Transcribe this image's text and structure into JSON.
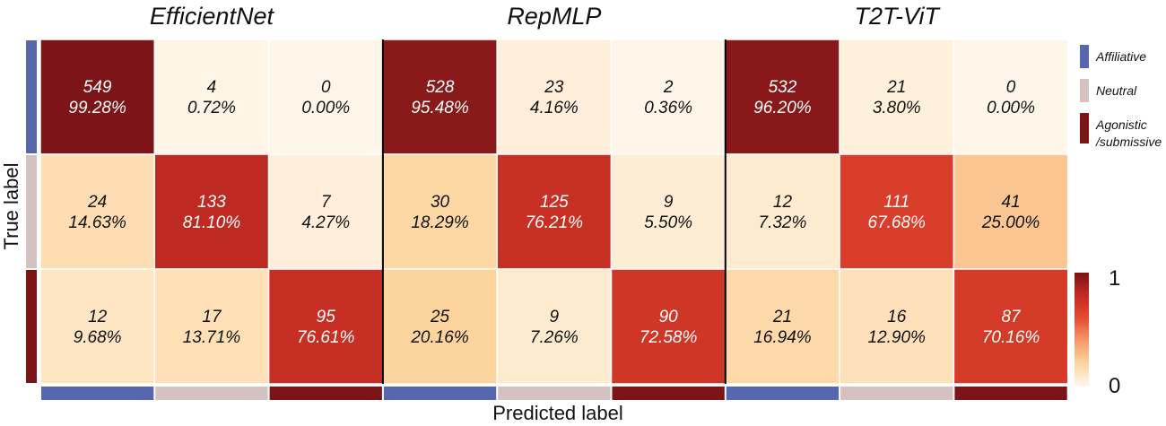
{
  "chart_data": {
    "type": "heatmap",
    "models": [
      "EfficientNet",
      "RepMLP",
      "T2T-ViT"
    ],
    "classes": [
      "Affiliative",
      "Neutral",
      "Agonistic\n/submissive"
    ],
    "class_colors": [
      "#5667ad",
      "#d6c1c1",
      "#7d1416"
    ],
    "xlabel": "Predicted label",
    "ylabel": "True label",
    "colorbar": {
      "min": 0,
      "max": 1,
      "min_label": "0",
      "max_label": "1",
      "colors": [
        "#fff6ea",
        "#fdd49e",
        "#f39a6b",
        "#e64a2e",
        "#c22a22",
        "#7a1418"
      ]
    },
    "matrices": [
      {
        "model": "EfficientNet",
        "counts": [
          [
            549,
            4,
            0
          ],
          [
            24,
            133,
            7
          ],
          [
            12,
            17,
            95
          ]
        ],
        "percents": [
          "99.28%",
          "0.72%",
          "0.00%",
          "14.63%",
          "81.10%",
          "4.27%",
          "9.68%",
          "13.71%",
          "76.61%"
        ],
        "fractions": [
          [
            0.9928,
            0.0072,
            0.0
          ],
          [
            0.1463,
            0.811,
            0.0427
          ],
          [
            0.0968,
            0.1371,
            0.7661
          ]
        ]
      },
      {
        "model": "RepMLP",
        "counts": [
          [
            528,
            23,
            2
          ],
          [
            30,
            125,
            9
          ],
          [
            25,
            9,
            90
          ]
        ],
        "percents": [
          "95.48%",
          "4.16%",
          "0.36%",
          "18.29%",
          "76.21%",
          "5.50%",
          "20.16%",
          "7.26%",
          "72.58%"
        ],
        "fractions": [
          [
            0.9548,
            0.0416,
            0.0036
          ],
          [
            0.1829,
            0.7621,
            0.055
          ],
          [
            0.2016,
            0.0726,
            0.7258
          ]
        ]
      },
      {
        "model": "T2T-ViT",
        "counts": [
          [
            532,
            21,
            0
          ],
          [
            12,
            111,
            41
          ],
          [
            21,
            16,
            87
          ]
        ],
        "percents": [
          "96.20%",
          "3.80%",
          "0.00%",
          "7.32%",
          "67.68%",
          "25.00%",
          "16.94%",
          "12.90%",
          "70.16%"
        ],
        "fractions": [
          [
            0.962,
            0.038,
            0.0
          ],
          [
            0.0732,
            0.6768,
            0.25
          ],
          [
            0.1694,
            0.129,
            0.7016
          ]
        ]
      }
    ]
  }
}
